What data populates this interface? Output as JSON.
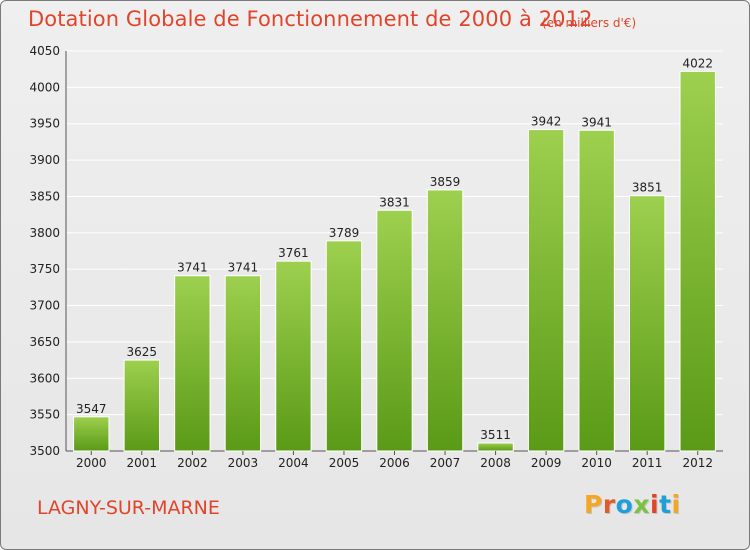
{
  "header": {
    "title": "Dotation Globale de Fonctionnement de 2000 à 2012",
    "subtitle": "(en milliers d'€)"
  },
  "footer": {
    "city": "LAGNY-SUR-MARNE",
    "brand": "Proxiti"
  },
  "colors": {
    "title": "#e0452b",
    "bar_top": "#9dd04e",
    "bar_bottom": "#5a9a16",
    "grid": "#ffffff",
    "brand_letters": [
      "#f5a623",
      "#e05a2b",
      "#1f9fd9",
      "#7cc242",
      "#e0452b",
      "#1f9fd9",
      "#f5a623"
    ]
  },
  "chart_data": {
    "type": "bar",
    "categories": [
      "2000",
      "2001",
      "2002",
      "2003",
      "2004",
      "2005",
      "2006",
      "2007",
      "2008",
      "2009",
      "2010",
      "2011",
      "2012"
    ],
    "values": [
      3547,
      3625,
      3741,
      3741,
      3761,
      3789,
      3831,
      3859,
      3511,
      3942,
      3941,
      3851,
      4022
    ],
    "value_labels": [
      "3547",
      "3625",
      "3741",
      "3741",
      "3761",
      "3789",
      "3831",
      "3859",
      "3511",
      "3942",
      "3941",
      "3851",
      "4022"
    ],
    "title": "Dotation Globale de Fonctionnement de 2000 à 2012",
    "subtitle": "(en milliers d'€)",
    "xlabel": "",
    "ylabel": "",
    "ylim": [
      3500,
      4050
    ],
    "yticks": [
      3500,
      3550,
      3600,
      3650,
      3700,
      3750,
      3800,
      3850,
      3900,
      3950,
      4000,
      4050
    ],
    "grid": true,
    "legend": "none"
  }
}
